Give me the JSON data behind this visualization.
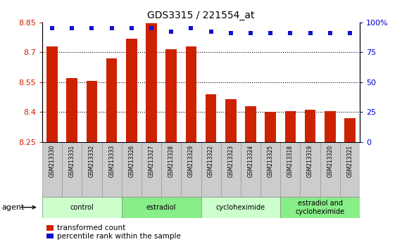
{
  "title": "GDS3315 / 221554_at",
  "samples": [
    "GSM213330",
    "GSM213331",
    "GSM213332",
    "GSM213333",
    "GSM213326",
    "GSM213327",
    "GSM213328",
    "GSM213329",
    "GSM213322",
    "GSM213323",
    "GSM213324",
    "GSM213325",
    "GSM213318",
    "GSM213319",
    "GSM213320",
    "GSM213321"
  ],
  "bar_values": [
    8.73,
    8.57,
    8.555,
    8.67,
    8.77,
    8.847,
    8.715,
    8.73,
    8.49,
    8.465,
    8.43,
    8.4,
    8.405,
    8.41,
    8.405,
    8.37
  ],
  "percentile_values": [
    95,
    95,
    95,
    95,
    95,
    95,
    92,
    95,
    92,
    91,
    91,
    91,
    91,
    91,
    91,
    91
  ],
  "bar_color": "#cc2200",
  "dot_color": "#1111cc",
  "ymin": 8.25,
  "ymax": 8.85,
  "y2min": 0,
  "y2max": 100,
  "ytick_vals": [
    8.25,
    8.4,
    8.55,
    8.7,
    8.85
  ],
  "ytick_labels": [
    "8.25",
    "8.4",
    "8.55",
    "8.7",
    "8.85"
  ],
  "y2tick_vals": [
    0,
    25,
    50,
    75,
    100
  ],
  "y2tick_labels": [
    "0",
    "25",
    "50",
    "75",
    "100%"
  ],
  "grid_lines": [
    8.4,
    8.55,
    8.7
  ],
  "groups": [
    {
      "label": "control",
      "start": 0,
      "end": 4,
      "color": "#ccffcc"
    },
    {
      "label": "estradiol",
      "start": 4,
      "end": 8,
      "color": "#88ee88"
    },
    {
      "label": "cycloheximide",
      "start": 8,
      "end": 12,
      "color": "#ccffcc"
    },
    {
      "label": "estradiol and\ncycloheximide",
      "start": 12,
      "end": 16,
      "color": "#88ee88"
    }
  ],
  "agent_label": "agent",
  "legend_bar_label": "transformed count",
  "legend_dot_label": "percentile rank within the sample",
  "bg_color": "#ffffff",
  "left_tick_color": "#cc2200",
  "right_tick_color": "#0000cc",
  "sample_box_color": "#cccccc",
  "sample_box_edge": "#999999"
}
